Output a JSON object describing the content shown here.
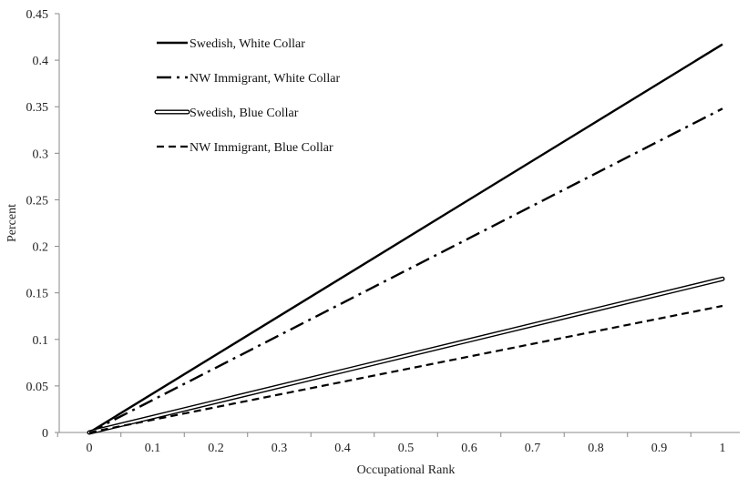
{
  "chart_data": {
    "type": "line",
    "title": "",
    "xlabel": "Occupational Rank",
    "ylabel": "Percent",
    "xlim": [
      0,
      1
    ],
    "ylim": [
      0,
      0.45
    ],
    "x_ticks": [
      "0",
      "0.1",
      "0.2",
      "0.3",
      "0.4",
      "0.5",
      "0.6",
      "0.7",
      "0.8",
      "0.9",
      "1"
    ],
    "y_ticks": [
      "0",
      "0.05",
      "0.1",
      "0.15",
      "0.2",
      "0.25",
      "0.3",
      "0.35",
      "0.4",
      "0.45"
    ],
    "grid": false,
    "legend_position": "top-left",
    "series": [
      {
        "name": "Swedish, White Collar",
        "style": "solid",
        "color": "#000000",
        "x": [
          0,
          1
        ],
        "y": [
          0,
          0.417
        ]
      },
      {
        "name": "NW Immigrant, White Collar",
        "style": "dash-dot",
        "color": "#000000",
        "x": [
          0,
          1
        ],
        "y": [
          0,
          0.348
        ]
      },
      {
        "name": "Swedish, Blue Collar",
        "style": "double",
        "color": "#000000",
        "x": [
          0,
          1
        ],
        "y": [
          0,
          0.165
        ]
      },
      {
        "name": "NW Immigrant, Blue Collar",
        "style": "dashed",
        "color": "#000000",
        "x": [
          0,
          1
        ],
        "y": [
          0,
          0.136
        ]
      }
    ]
  }
}
